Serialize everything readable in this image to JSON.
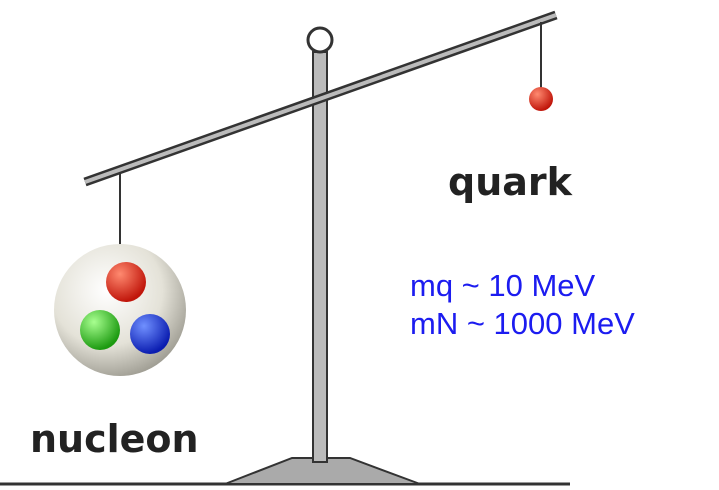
{
  "labels": {
    "quark": "quark",
    "nucleon": "nucleon"
  },
  "masses": [
    "mq ~ 10 MeV",
    "mN ~ 1000 MeV"
  ]
}
